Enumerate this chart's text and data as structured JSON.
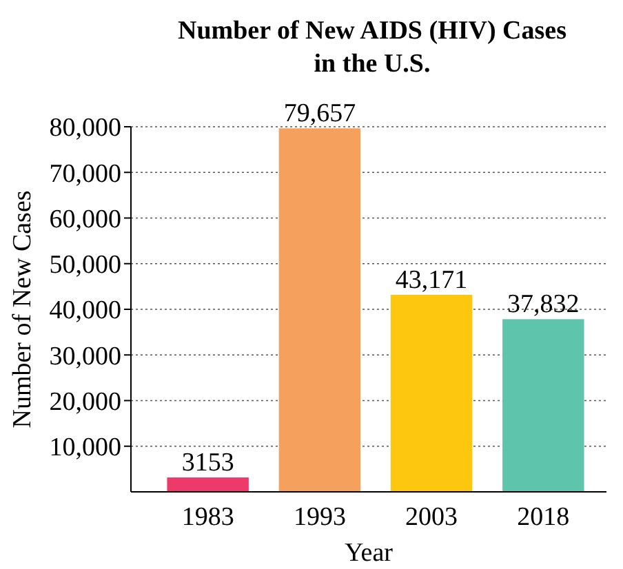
{
  "chart_data": {
    "type": "bar",
    "title": "Number of New AIDS (HIV) Cases\nin the U.S.",
    "xlabel": "Year",
    "ylabel": "Number of New Cases",
    "categories": [
      "1983",
      "1993",
      "2003",
      "2018"
    ],
    "values": [
      3153,
      79657,
      43171,
      37832
    ],
    "value_labels": [
      "3153",
      "79,657",
      "43,171",
      "37,832"
    ],
    "colors": [
      "#ec3a6b",
      "#f6a05e",
      "#fdc70f",
      "#5fc4ac"
    ],
    "ylim": [
      0,
      80000
    ],
    "yticks": [
      {
        "value": 10000,
        "label": "10,000"
      },
      {
        "value": 20000,
        "label": "20,000"
      },
      {
        "value": 30000,
        "label": "30,000"
      },
      {
        "value": 40000,
        "label": "40,000"
      },
      {
        "value": 50000,
        "label": "50,000"
      },
      {
        "value": 60000,
        "label": "60,000"
      },
      {
        "value": 70000,
        "label": "70,000"
      },
      {
        "value": 80000,
        "label": "80,000"
      }
    ],
    "grid": "y"
  }
}
